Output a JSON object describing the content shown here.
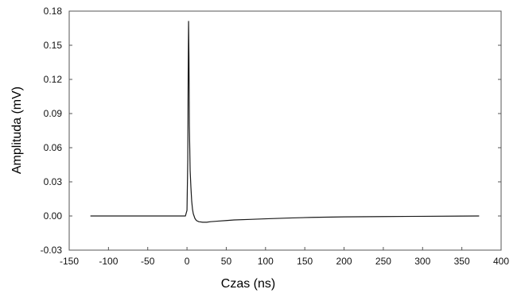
{
  "chart_data": {
    "type": "line",
    "title": "",
    "xlabel": "Czas (ns)",
    "ylabel": "Amplituda (mV)",
    "xlim": [
      -150,
      400
    ],
    "ylim": [
      -0.03,
      0.18
    ],
    "xticks": [
      -150,
      -100,
      -50,
      0,
      50,
      100,
      150,
      200,
      250,
      300,
      350,
      400
    ],
    "yticks": [
      -0.03,
      0.0,
      0.03,
      0.06,
      0.09,
      0.12,
      0.15,
      0.18
    ],
    "xtick_labels": [
      "-150",
      "-100",
      "-50",
      "0",
      "50",
      "100",
      "150",
      "200",
      "250",
      "300",
      "350",
      "400"
    ],
    "ytick_labels": [
      "-0.03",
      "0.00",
      "0.03",
      "0.06",
      "0.09",
      "0.12",
      "0.15",
      "0.18"
    ],
    "grid": false,
    "series": [
      {
        "color": "#1a1a1a",
        "x": [
          -123,
          -10,
          -2,
          0,
          1,
          1.5,
          2,
          2.5,
          3,
          3.5,
          4,
          5,
          6,
          7,
          8,
          10,
          12,
          15,
          20,
          25,
          30,
          40,
          50,
          60,
          80,
          100,
          130,
          160,
          200,
          250,
          300,
          350,
          372
        ],
        "y": [
          0.0,
          0.0,
          0.0,
          0.005,
          0.05,
          0.125,
          0.171,
          0.14,
          0.08,
          0.06,
          0.04,
          0.025,
          0.013,
          0.006,
          0.002,
          -0.002,
          -0.004,
          -0.005,
          -0.0055,
          -0.0055,
          -0.005,
          -0.0045,
          -0.004,
          -0.0035,
          -0.003,
          -0.0025,
          -0.0018,
          -0.0012,
          -0.0008,
          -0.0005,
          -0.0003,
          -0.0001,
          0.0
        ]
      }
    ]
  }
}
